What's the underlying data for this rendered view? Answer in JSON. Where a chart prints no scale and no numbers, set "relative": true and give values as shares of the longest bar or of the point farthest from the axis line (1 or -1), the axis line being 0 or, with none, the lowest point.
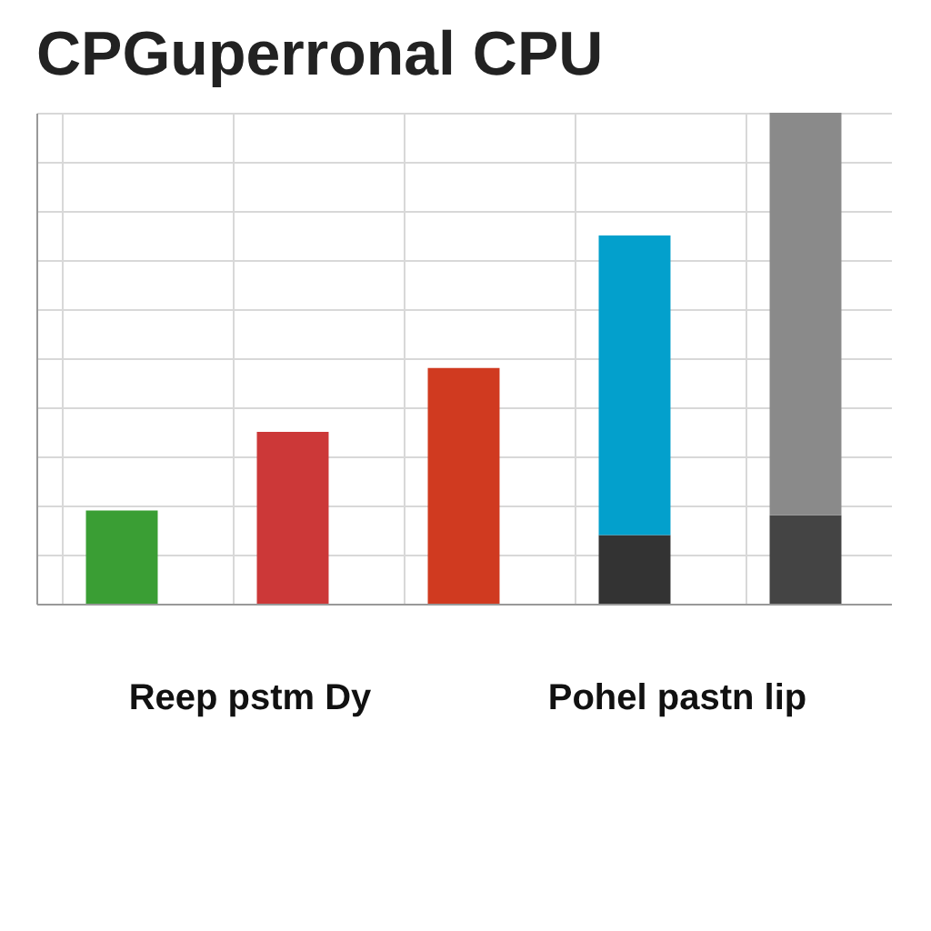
{
  "chart_data": {
    "type": "bar",
    "title": "CPGuperronal CPU",
    "categories": [
      null,
      null,
      null,
      null,
      null
    ],
    "stacked": true,
    "relative": true,
    "grid": true,
    "series": [
      {
        "colors": [
          "#3a9e34",
          "#cc3838",
          "#d03a20",
          "#333333",
          "#444444"
        ],
        "values": [
          0.19,
          0.35,
          0.48,
          0.14,
          0.18
        ]
      },
      {
        "colors": [
          null,
          null,
          null,
          "#03a0cc",
          "#8a8a8a"
        ],
        "values": [
          null,
          null,
          null,
          0.61,
          0.82
        ]
      }
    ],
    "annotations": [
      "Reep pstm Dy",
      "Pohel pastn lip"
    ]
  }
}
